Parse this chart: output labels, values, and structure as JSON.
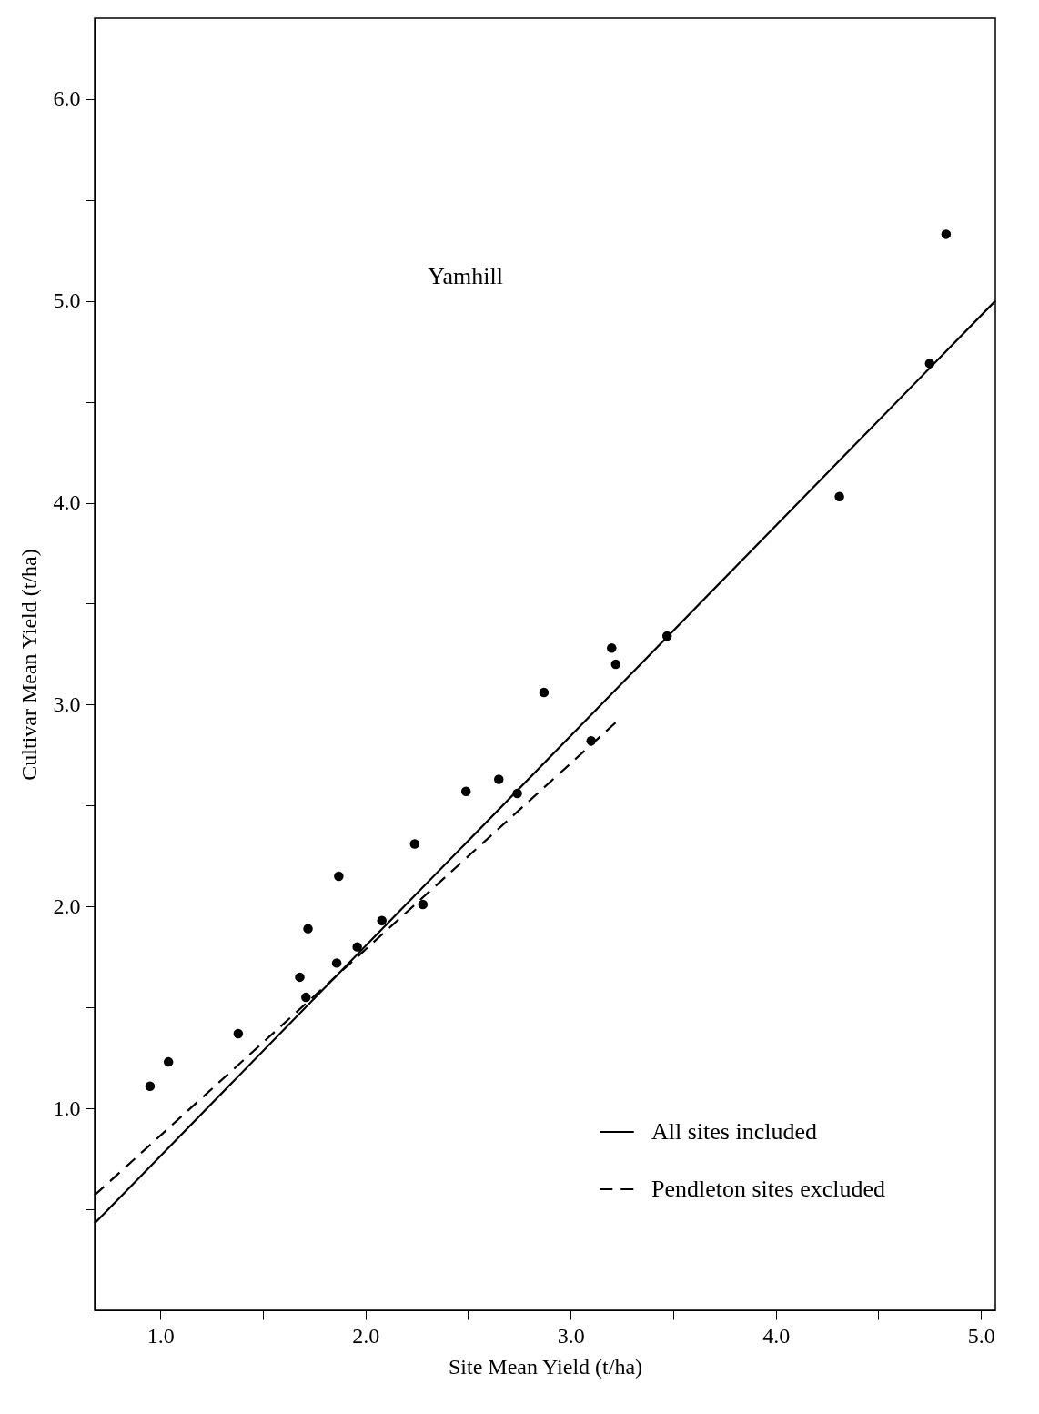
{
  "chart_data": {
    "type": "scatter",
    "xlabel": "Site Mean Yield (t/ha)",
    "ylabel": "Cultivar Mean Yield (t/ha)",
    "annotations": [
      "Yamhill"
    ],
    "xlim": [
      0.68,
      5.07
    ],
    "ylim": [
      0,
      6.4
    ],
    "xticks": [
      {
        "value": 1,
        "label": "1.0"
      },
      {
        "value": 1.5,
        "label": null
      },
      {
        "value": 2,
        "label": "2.0"
      },
      {
        "value": 2.5,
        "label": null
      },
      {
        "value": 3,
        "label": "3.0"
      },
      {
        "value": 3.5,
        "label": null
      },
      {
        "value": 4,
        "label": "4.0"
      },
      {
        "value": 4.5,
        "label": null
      },
      {
        "value": 5,
        "label": "5.0"
      }
    ],
    "yticks": [
      {
        "value": 0.5,
        "label": null
      },
      {
        "value": 1,
        "label": "1.0"
      },
      {
        "value": 1.5,
        "label": null
      },
      {
        "value": 2,
        "label": "2.0"
      },
      {
        "value": 2.5,
        "label": null
      },
      {
        "value": 3,
        "label": "3.0"
      },
      {
        "value": 3.5,
        "label": null
      },
      {
        "value": 4,
        "label": "4.0"
      },
      {
        "value": 4.5,
        "label": null
      },
      {
        "value": 5,
        "label": "5.0"
      },
      {
        "value": 5.5,
        "label": null
      },
      {
        "value": 6,
        "label": "6.0"
      }
    ],
    "grid": false,
    "legend": "bottom right",
    "series": [
      {
        "marker": "circle",
        "color": "#000000",
        "x": [
          0.95,
          1.04,
          1.38,
          1.68,
          1.71,
          1.72,
          1.86,
          1.87,
          1.96,
          2.08,
          2.24,
          2.28,
          2.49,
          2.65,
          2.74,
          2.87,
          3.1,
          3.2,
          3.22,
          3.47,
          4.31,
          4.75,
          4.83
        ],
        "values": [
          1.11,
          1.23,
          1.37,
          1.65,
          1.55,
          1.89,
          1.72,
          2.15,
          1.8,
          1.93,
          2.31,
          2.01,
          2.57,
          2.63,
          2.56,
          3.06,
          2.82,
          3.28,
          3.2,
          3.34,
          4.03,
          4.69,
          5.33
        ]
      },
      {
        "type": "line",
        "name": "All sites included",
        "color": "#000000",
        "line_style": "solid",
        "marker": "none",
        "x": [
          0.68,
          5.07
        ],
        "values": [
          0.43,
          5.0
        ]
      },
      {
        "type": "line",
        "name": "Pendleton sites excluded",
        "color": "#000000",
        "line_style": "dashed",
        "marker": "none",
        "x": [
          0.68,
          3.24
        ],
        "values": [
          0.57,
          2.93
        ]
      }
    ]
  }
}
